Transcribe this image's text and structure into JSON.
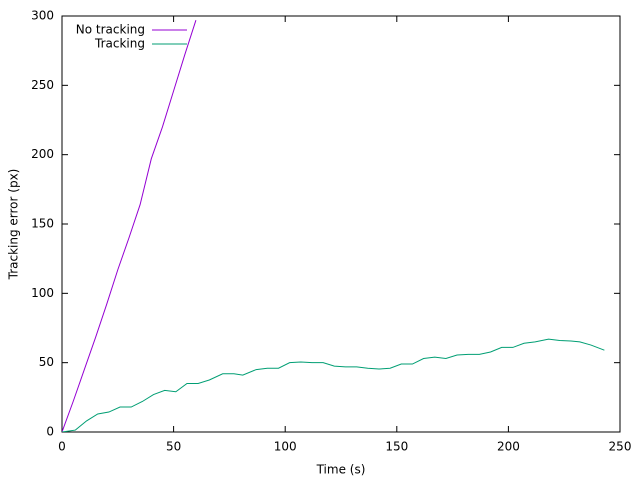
{
  "chart_data": {
    "type": "line",
    "xlabel": "Time (s)",
    "ylabel": "Tracking error (px)",
    "xlim": [
      0,
      250
    ],
    "xticks": [
      0,
      50,
      100,
      150,
      200,
      250
    ],
    "ylim": [
      0,
      300
    ],
    "yticks": [
      0,
      50,
      100,
      150,
      200,
      250,
      300
    ],
    "legend": "top-left",
    "series": [
      {
        "name": "No tracking",
        "color": "#9400d3",
        "x": [
          0,
          5,
          10,
          15,
          20,
          25,
          30,
          35,
          40,
          45,
          50,
          55,
          60
        ],
        "values": [
          0,
          22,
          45,
          68,
          92,
          117,
          140,
          164,
          197,
          220,
          246,
          272,
          297
        ]
      },
      {
        "name": "Tracking",
        "color": "#009e73",
        "x": [
          0,
          6,
          11,
          16,
          21,
          26,
          31,
          36,
          41,
          46,
          51,
          56,
          61,
          66,
          72,
          77,
          81,
          87,
          92,
          97,
          102,
          107,
          112,
          117,
          122,
          127,
          132,
          137,
          142,
          147,
          152,
          157,
          162,
          167,
          172,
          177,
          182,
          187,
          192,
          197,
          202,
          207,
          212,
          218,
          223,
          228,
          232,
          237,
          243
        ],
        "values": [
          0,
          1.4,
          8,
          13,
          14.4,
          18,
          18,
          22,
          27,
          30,
          29,
          35,
          35,
          37.5,
          42,
          42,
          41,
          45,
          46,
          46,
          50,
          50.5,
          50,
          50,
          47.5,
          47,
          47,
          46,
          45.4,
          46,
          49,
          49,
          53,
          54,
          53,
          55.5,
          56,
          56,
          57.7,
          61,
          61,
          64,
          65,
          67,
          66,
          65.6,
          65,
          62.7,
          59
        ]
      }
    ]
  }
}
